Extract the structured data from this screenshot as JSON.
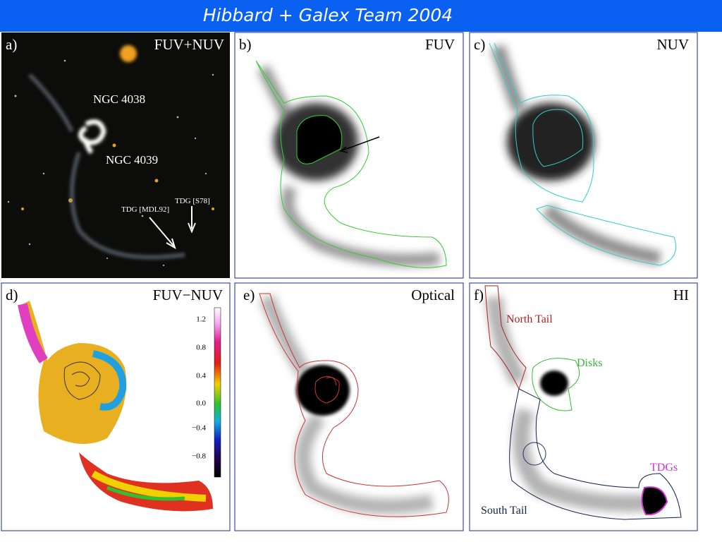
{
  "header": {
    "title": "Hibbard + Galex Team  2004"
  },
  "panels": [
    {
      "label": "a)",
      "title": "FUV+NUV",
      "annotations": [
        "NGC 4038",
        "NGC 4039",
        "TDG [S78]",
        "TDG [MDL92]"
      ]
    },
    {
      "label": "b)",
      "title": "FUV"
    },
    {
      "label": "c)",
      "title": "NUV"
    },
    {
      "label": "d)",
      "title": "FUV−NUV",
      "colorbar_ticks": [
        "1.2",
        "0.8",
        "0.4",
        "0.0",
        "−0.4",
        "−0.8"
      ]
    },
    {
      "label": "e)",
      "title": "Optical"
    },
    {
      "label": "f)",
      "title": "HI",
      "annotations": [
        "North Tail",
        "Disks",
        "TDGs",
        "South Tail"
      ]
    }
  ]
}
